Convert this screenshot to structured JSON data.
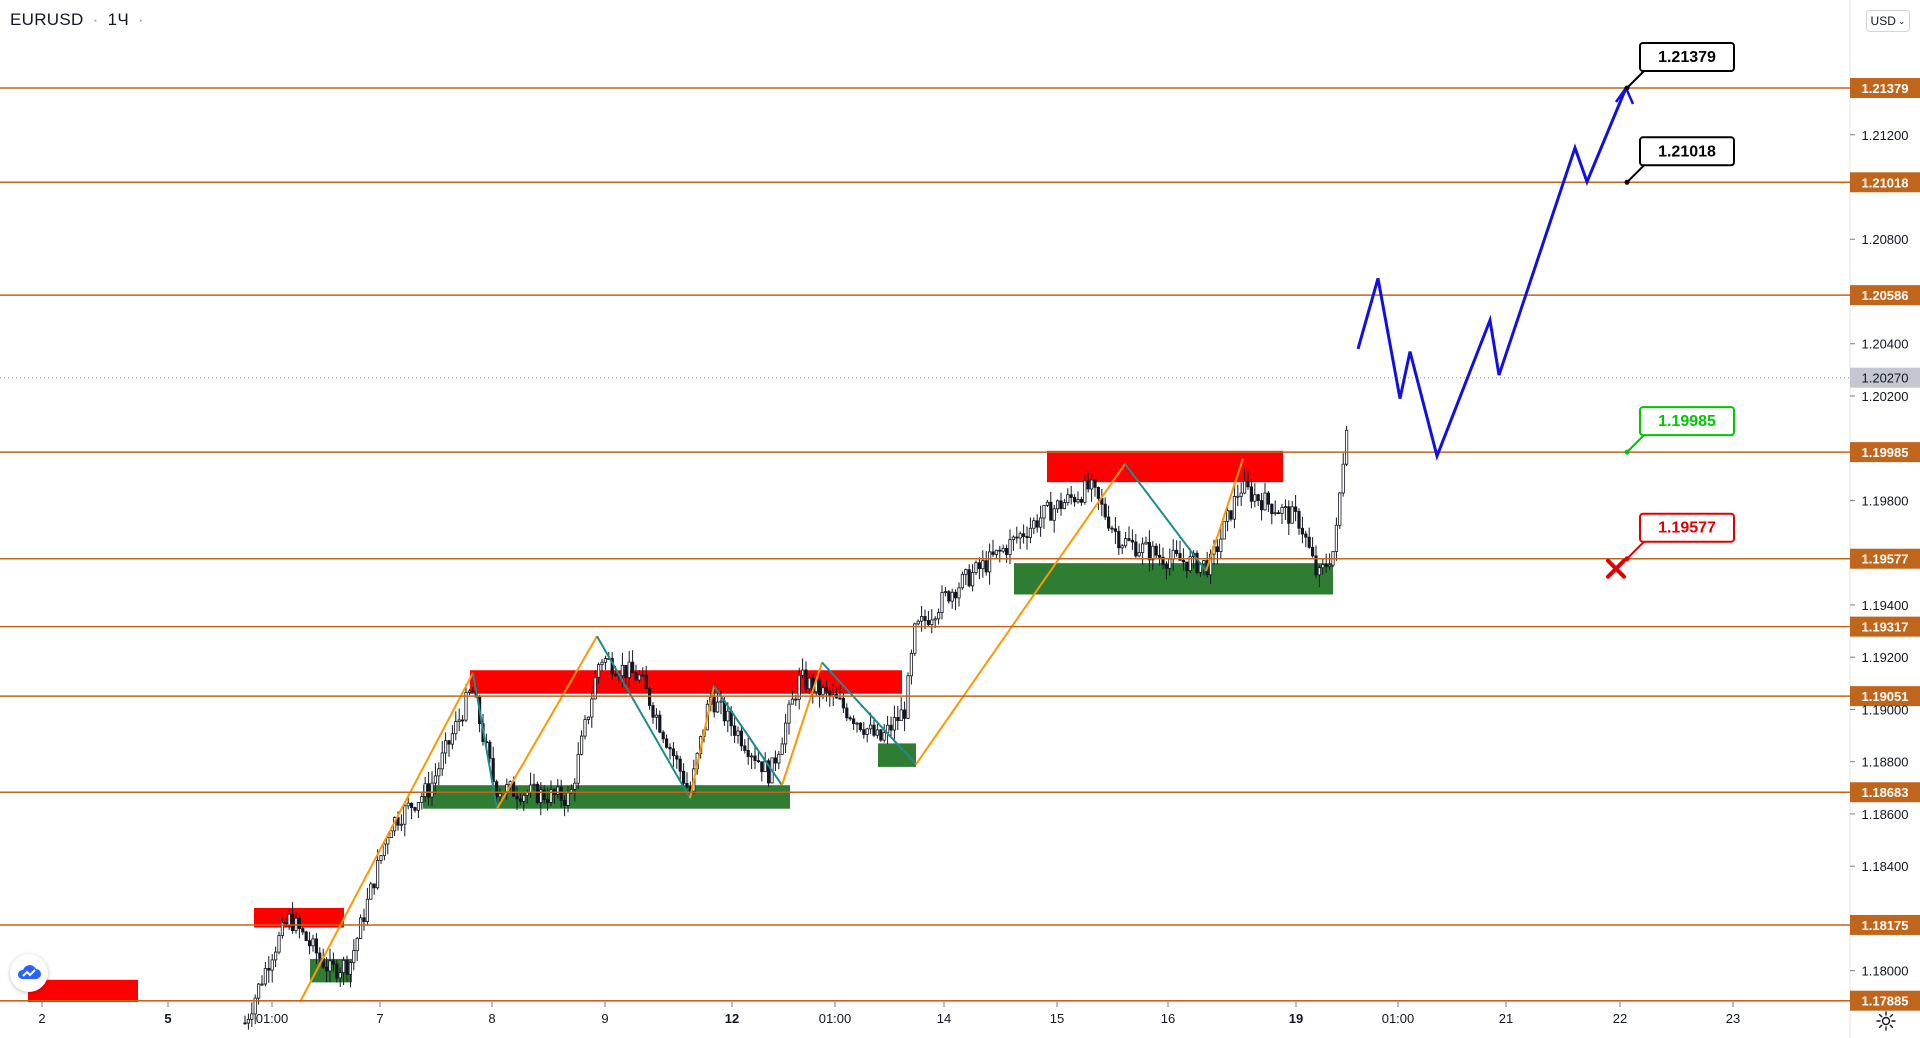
{
  "header": {
    "symbol": "EURUSD",
    "separator": "·",
    "interval": "1Ч",
    "dot": "·"
  },
  "currency": {
    "label": "USD",
    "caret": "⌄"
  },
  "icons": {
    "logo": "tradingview-cloud-icon",
    "settings": "gear-icon"
  },
  "colors": {
    "level_line": "#c0661c",
    "level_label_bg": "#c0661c",
    "supply_zone": "#ff0000",
    "demand_zone": "#2e7d32",
    "zigzag_up": "#ff9800",
    "zigzag_down": "#1e8c8c",
    "forecast": "#1010e0",
    "target_label": "#000000",
    "entry_label": "#00c800",
    "stop_label": "#e00000",
    "current_price_bg": "#c4c7cf"
  },
  "chart_data": {
    "type": "candlestick",
    "symbol": "EURUSD",
    "interval": "1Ч",
    "ylim": [
      1.1788,
      1.2165
    ],
    "y_ticks": [
      1.18,
      1.184,
      1.186,
      1.188,
      1.19,
      1.192,
      1.194,
      1.198,
      1.202,
      1.204,
      1.208,
      1.212
    ],
    "y_tick_labels": [
      "1.18000",
      "1.18400",
      "1.18600",
      "1.18800",
      "1.19000",
      "1.19200",
      "1.19400",
      "1.19800",
      "1.20200",
      "1.20400",
      "1.20800",
      "1.21200"
    ],
    "x_tick_labels": [
      "2",
      "5",
      "01:00",
      "7",
      "8",
      "9",
      "12",
      "01:00",
      "14",
      "15",
      "16",
      "19",
      "01:00",
      "21",
      "22",
      "23"
    ],
    "bold_x_tick_labels": [
      "5",
      "12",
      "19"
    ],
    "current_price": {
      "value": 1.2027,
      "label": "1.20270"
    },
    "horizontal_levels": [
      {
        "value": 1.21379,
        "label": "1.21379"
      },
      {
        "value": 1.21018,
        "label": "1.21018"
      },
      {
        "value": 1.20586,
        "label": "1.20586"
      },
      {
        "value": 1.19985,
        "label": "1.19985"
      },
      {
        "value": 1.19577,
        "label": "1.19577"
      },
      {
        "value": 1.19317,
        "label": "1.19317"
      },
      {
        "value": 1.19051,
        "label": "1.19051"
      },
      {
        "value": 1.18683,
        "label": "1.18683"
      },
      {
        "value": 1.18175,
        "label": "1.18175"
      },
      {
        "value": 1.17885,
        "label": "1.17885"
      }
    ],
    "callouts": [
      {
        "label": "1.21379",
        "value": 1.21379,
        "kind": "target"
      },
      {
        "label": "1.21018",
        "value": 1.21018,
        "kind": "target"
      },
      {
        "label": "1.19985",
        "value": 1.19985,
        "kind": "entry"
      },
      {
        "label": "1.19577",
        "value": 1.19577,
        "kind": "stop"
      }
    ],
    "zones": [
      {
        "kind": "supply",
        "x0": "2",
        "x1": "5",
        "y0": 1.1788,
        "y1": 1.17965
      },
      {
        "kind": "supply",
        "x0": "01:00",
        "x1": "7",
        "y0": 1.18165,
        "y1": 1.1824
      },
      {
        "kind": "demand",
        "x0": "01:00",
        "x1": "7",
        "y0": 1.17955,
        "y1": 1.18045
      },
      {
        "kind": "supply",
        "x0": "8",
        "x1": "14",
        "y0": 1.1906,
        "y1": 1.1915
      },
      {
        "kind": "demand",
        "x0": "7",
        "x1": "12",
        "y0": 1.1862,
        "y1": 1.1871
      },
      {
        "kind": "demand",
        "x0": "01:00",
        "x1": "14",
        "y0": 1.1878,
        "y1": 1.1887
      },
      {
        "kind": "supply",
        "x0": "15",
        "x1": "19",
        "y0": 1.1987,
        "y1": 1.1999
      },
      {
        "kind": "demand",
        "x0": "15",
        "x1": "19",
        "y0": 1.1944,
        "y1": 1.1956
      }
    ],
    "zigzag": [
      {
        "x": "01:00",
        "y": 1.1788
      },
      {
        "x": "8",
        "y": 1.1914
      },
      {
        "x": "8",
        "y": 1.1862
      },
      {
        "x": "9",
        "y": 1.1928
      },
      {
        "x": "12",
        "y": 1.1866
      },
      {
        "x": "12",
        "y": 1.1909
      },
      {
        "x": "12",
        "y": 1.1871
      },
      {
        "x": "01:00",
        "y": 1.1918
      },
      {
        "x": "14",
        "y": 1.1879
      },
      {
        "x": "15",
        "y": 1.1994
      },
      {
        "x": "16",
        "y": 1.1953
      },
      {
        "x": "16",
        "y": 1.1996
      }
    ],
    "forecast_path": [
      {
        "x": "19",
        "y": 1.2038
      },
      {
        "x": "01:00",
        "y": 1.2065
      },
      {
        "x": "01:00",
        "y": 1.2019
      },
      {
        "x": "01:00",
        "y": 1.2037
      },
      {
        "x": "01:00",
        "y": 1.1997
      },
      {
        "x": "21",
        "y": 1.2049
      },
      {
        "x": "21",
        "y": 1.2028
      },
      {
        "x": "22",
        "y": 1.2115
      },
      {
        "x": "22",
        "y": 1.2102
      },
      {
        "x": "22",
        "y": 1.21379
      }
    ],
    "grid": false,
    "legend": "none"
  }
}
